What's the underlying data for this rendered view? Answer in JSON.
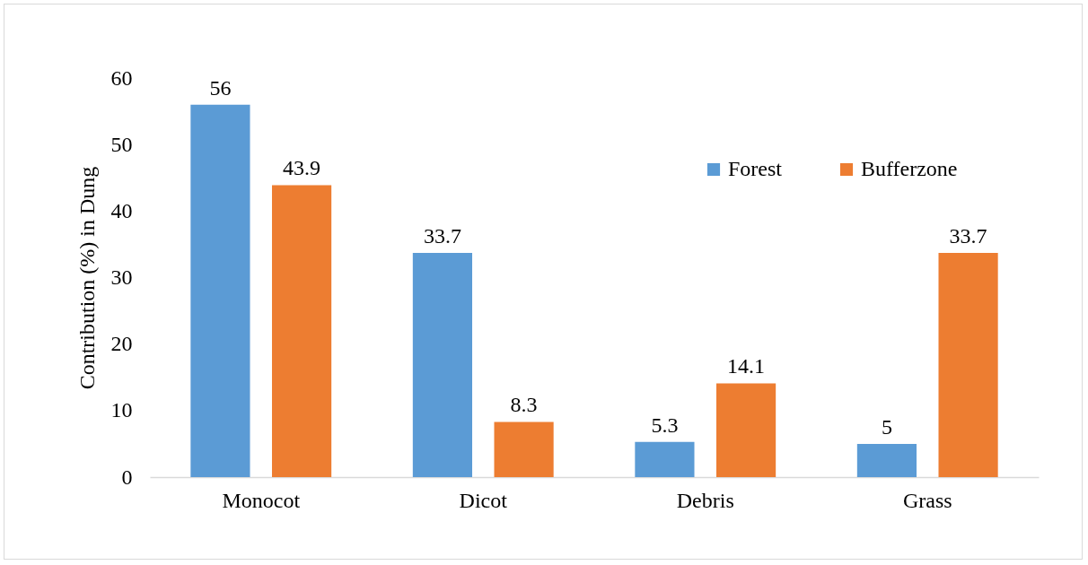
{
  "chart_data": {
    "type": "bar",
    "ylabel": "Contribution (%) in Dung",
    "categories": [
      "Monocot",
      "Dicot",
      "Debris",
      "Grass"
    ],
    "series": [
      {
        "name": "Forest",
        "color": "#5b9bd5",
        "values": [
          56,
          33.7,
          5.3,
          5
        ]
      },
      {
        "name": "Bufferzone",
        "color": "#ed7d31",
        "values": [
          43.9,
          8.3,
          14.1,
          33.7
        ]
      }
    ],
    "ylim": [
      0,
      60
    ],
    "yticks": [
      0,
      10,
      20,
      30,
      40,
      50,
      60
    ],
    "data_labels": true,
    "legend": "top right"
  }
}
